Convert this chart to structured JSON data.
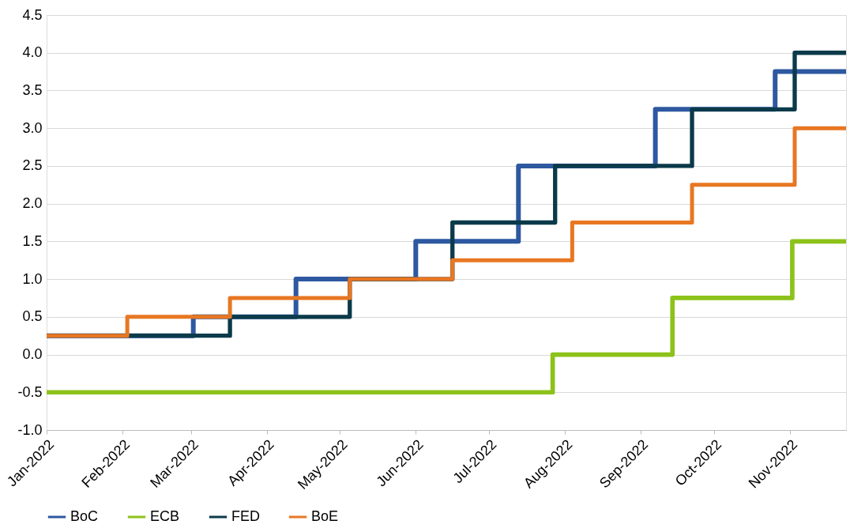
{
  "chart_data": {
    "type": "step",
    "xlim": [
      "2022-01-01",
      "2022-11-24"
    ],
    "ylim": [
      -1.0,
      4.5
    ],
    "xticks": [
      {
        "value": "2022-01-01",
        "label": "Jan-2022"
      },
      {
        "value": "2022-02-01",
        "label": "Feb-2022"
      },
      {
        "value": "2022-03-01",
        "label": "Mar-2022"
      },
      {
        "value": "2022-04-01",
        "label": "Apr-2022"
      },
      {
        "value": "2022-05-01",
        "label": "May-2022"
      },
      {
        "value": "2022-06-01",
        "label": "Jun-2022"
      },
      {
        "value": "2022-07-01",
        "label": "Jul-2022"
      },
      {
        "value": "2022-08-01",
        "label": "Aug-2022"
      },
      {
        "value": "2022-09-01",
        "label": "Sep-2022"
      },
      {
        "value": "2022-10-01",
        "label": "Oct-2022"
      },
      {
        "value": "2022-11-01",
        "label": "Nov-2022"
      }
    ],
    "yticks": [
      {
        "value": -1.0,
        "label": "-1.0"
      },
      {
        "value": -0.5,
        "label": "-0.5"
      },
      {
        "value": 0,
        "label": "0.0"
      },
      {
        "value": 0.5,
        "label": "0.5"
      },
      {
        "value": 1.0,
        "label": "1.0"
      },
      {
        "value": 1.5,
        "label": "1.5"
      },
      {
        "value": 2.0,
        "label": "2.0"
      },
      {
        "value": 2.5,
        "label": "2.5"
      },
      {
        "value": 3.0,
        "label": "3.0"
      },
      {
        "value": 3.5,
        "label": "3.5"
      },
      {
        "value": 4.0,
        "label": "4.0"
      },
      {
        "value": 4.5,
        "label": "4.5"
      }
    ],
    "grid": "y",
    "legend": "bottom",
    "series": [
      {
        "name": "BoC",
        "color": "#2e58a0",
        "x": [
          "2022-01-01",
          "2022-03-02",
          "2022-04-13",
          "2022-06-01",
          "2022-07-13",
          "2022-09-07",
          "2022-10-26",
          "2022-11-24"
        ],
        "values": [
          0.25,
          0.5,
          1.0,
          1.5,
          2.5,
          3.25,
          3.75,
          3.75
        ]
      },
      {
        "name": "ECB",
        "color": "#8cc21a",
        "x": [
          "2022-01-01",
          "2022-07-27",
          "2022-09-14",
          "2022-11-02",
          "2022-11-24"
        ],
        "values": [
          -0.5,
          0.0,
          0.75,
          1.5,
          1.5
        ]
      },
      {
        "name": "FED",
        "color": "#0b3a4a",
        "x": [
          "2022-01-01",
          "2022-03-17",
          "2022-05-05",
          "2022-06-16",
          "2022-07-28",
          "2022-09-22",
          "2022-11-03",
          "2022-11-24"
        ],
        "values": [
          0.25,
          0.5,
          1.0,
          1.75,
          2.5,
          3.25,
          4.0,
          4.0
        ]
      },
      {
        "name": "BoE",
        "color": "#e87722",
        "x": [
          "2022-01-01",
          "2022-02-03",
          "2022-03-17",
          "2022-05-05",
          "2022-06-16",
          "2022-08-04",
          "2022-09-22",
          "2022-11-03",
          "2022-11-24"
        ],
        "values": [
          0.25,
          0.5,
          0.75,
          1.0,
          1.25,
          1.75,
          2.25,
          3.0,
          3.0
        ]
      }
    ]
  }
}
